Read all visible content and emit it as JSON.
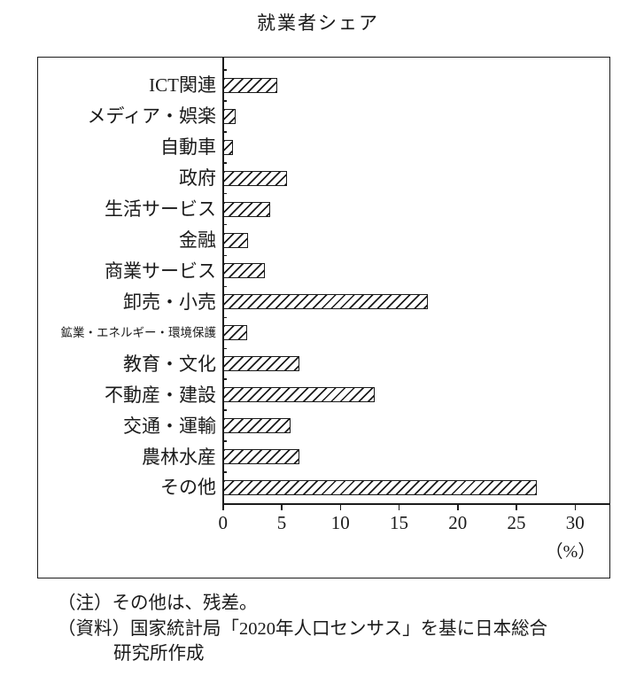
{
  "title": "就業者シェア",
  "chart_data": {
    "type": "bar",
    "orientation": "horizontal",
    "title": "就業者シェア",
    "categories": [
      "ICT関連",
      "メディア・娯楽",
      "自動車",
      "政府",
      "生活サービス",
      "金融",
      "商業サービス",
      "卸売・小売",
      "鉱業・エネルギー・環境保護",
      "教育・文化",
      "不動産・建設",
      "交通・運輸",
      "農林水産",
      "その他"
    ],
    "values": [
      4.7,
      1.1,
      0.9,
      5.5,
      4.1,
      2.2,
      3.6,
      17.5,
      2.1,
      6.6,
      13.0,
      5.8,
      6.6,
      26.8
    ],
    "unit": "%",
    "xlabel": "（%）",
    "x_ticks": [
      0,
      5,
      10,
      15,
      20,
      25,
      30
    ],
    "xlim": [
      0,
      33
    ],
    "grid": false,
    "legend": "none",
    "bar_style": "white fill with black diagonal hatch",
    "line_color": "#1c1c1c",
    "background": "#ffffff"
  },
  "notes": [
    "（注）その他は、残差。",
    "（資料）国家統計局「2020年人口センサス」を基に日本総合",
    "研究所作成"
  ]
}
